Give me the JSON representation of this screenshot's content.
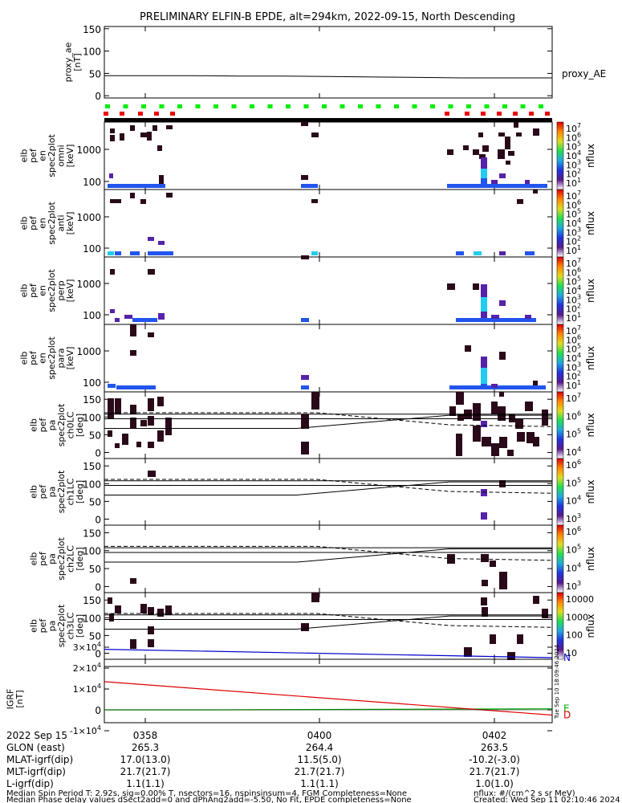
{
  "title": "PRELIMINARY ELFIN-B EPDE, alt=294km, 2022-09-15, North Descending",
  "colors": {
    "pa90": "#000000",
    "pa_lc": "#000000",
    "grf_n": "#0000cc",
    "grf_e": "#00aa00",
    "grf_d": "#dd0000",
    "bar_green": "#00ee00",
    "bar_red": "#ee0000",
    "cell_dark": "#2a0a1a",
    "cell_purple": "#5522aa",
    "cell_blue": "#2255ee",
    "cell_cyan": "#22ccee"
  },
  "chart_data": [
    {
      "panel": "proxy_ae",
      "type": "line",
      "ylabel": "proxy_ae\n[nT]",
      "ylim": [
        -5,
        155
      ],
      "yticks": [
        "150",
        "100",
        "50",
        "0"
      ],
      "legend": "proxy_AE",
      "x": [
        0,
        0.1,
        0.2,
        0.3,
        0.4,
        0.5,
        0.6,
        0.7,
        0.8,
        0.9,
        1.0
      ],
      "y": [
        45,
        45,
        45,
        44,
        44,
        43,
        42,
        41,
        40,
        40,
        40
      ]
    },
    {
      "panel": "status_bar",
      "type": "bar",
      "labels": []
    },
    {
      "panel": "omni",
      "type": "heatmap",
      "ylabel": "elb\npef\nen\nspec2plot\nomni\n[keV]",
      "yticks": [
        "1000",
        "100"
      ],
      "colorbar_ticks": [
        "10^7",
        "10^6",
        "10^5",
        "10^4",
        "10^3",
        "10^2",
        "10^1"
      ],
      "colorbar_label": "nflux"
    },
    {
      "panel": "anti",
      "type": "heatmap",
      "ylabel": "elb\npef\nen\nspec2plot\nanti\n[keV]",
      "yticks": [
        "1000",
        "100"
      ],
      "colorbar_ticks": [
        "10^7",
        "10^6",
        "10^5",
        "10^4",
        "10^3",
        "10^2",
        "10^1"
      ],
      "colorbar_label": "nflux"
    },
    {
      "panel": "perp",
      "type": "heatmap",
      "ylabel": "elb\npef\nen\nspec2plot\nperp\n[keV]",
      "yticks": [
        "1000",
        "100"
      ],
      "colorbar_ticks": [
        "10^7",
        "10^6",
        "10^5",
        "10^4",
        "10^3",
        "10^2",
        "10^1"
      ],
      "colorbar_label": "nflux"
    },
    {
      "panel": "para",
      "type": "heatmap",
      "ylabel": "elb\npef\nen\nspec2plot\npara\n[keV]",
      "yticks": [
        "1000",
        "100"
      ],
      "colorbar_ticks": [
        "10^7",
        "10^6",
        "10^5",
        "10^4",
        "10^3",
        "10^2",
        "10^1"
      ],
      "colorbar_label": "nflux"
    },
    {
      "panel": "ch0LC",
      "type": "heatmap",
      "ylabel": "elb\npef\npa\nspec2plot\nch0LC\n[deg]",
      "yticks": [
        "150",
        "100",
        "50",
        "0"
      ],
      "colorbar_ticks": [
        "10^7",
        "10^6",
        "10^5",
        "10^4"
      ],
      "colorbar_label": "nflux"
    },
    {
      "panel": "ch1LC",
      "type": "heatmap",
      "ylabel": "elb\npef\npa\nspec2plot\nch1LC\n[deg]",
      "yticks": [
        "150",
        "100",
        "50",
        "0"
      ],
      "colorbar_ticks": [
        "10^6",
        "10^5",
        "10^4",
        "10^3"
      ],
      "colorbar_label": "nflux"
    },
    {
      "panel": "ch2LC",
      "type": "heatmap",
      "ylabel": "elb\npef\npa\nspec2plot\nch2LC\n[deg]",
      "yticks": [
        "150",
        "100",
        "50",
        "0"
      ],
      "colorbar_ticks": [
        "10^6",
        "10^5",
        "10^4",
        "10^3"
      ],
      "colorbar_label": "nflux"
    },
    {
      "panel": "ch3LC",
      "type": "heatmap",
      "ylabel": "elb\npef\npa\nspec2plot\nch3LC\n[deg]",
      "yticks": [
        "150",
        "100",
        "50",
        "0"
      ],
      "colorbar_ticks": [
        "10000",
        "1000",
        "100",
        "10"
      ],
      "colorbar_label": "nflux"
    },
    {
      "panel": "IGRF",
      "type": "line",
      "ylabel": "IGRF\n[nT]",
      "yticks": [
        "3×10^4",
        "2×10^4",
        "1×10^4",
        "0",
        "-1×10^4"
      ],
      "series": [
        {
          "name": "N",
          "x": [
            0,
            1
          ],
          "y": [
            29000,
            25000
          ]
        },
        {
          "name": "E",
          "x": [
            0,
            0.25,
            1
          ],
          "y": [
            0,
            0,
            500
          ]
        },
        {
          "name": "D",
          "x": [
            0,
            1
          ],
          "y": [
            13500,
            -2500
          ]
        }
      ]
    }
  ],
  "footer": {
    "rows": [
      {
        "label": "2022 Sep 15",
        "v1": "0358",
        "v2": "0400",
        "v3": "0402"
      },
      {
        "label": "GLON (east)",
        "v1": "265.3",
        "v2": "264.4",
        "v3": "263.5"
      },
      {
        "label": "MLAT-igrf(dip)",
        "v1": "17.0(13.0)",
        "v2": "11.5(5.0)",
        "v3": "-10.2(-3.0)"
      },
      {
        "label": "MLT-igrf(dip)",
        "v1": "21.7(21.7)",
        "v2": "21.7(21.7)",
        "v3": "21.7(21.7)"
      },
      {
        "label": "L-igrf(dip)",
        "v1": "1.1(1.1)",
        "v2": "1.1(1.1)",
        "v3": "1.0(1.0)"
      }
    ],
    "note1": "Median Spin Period T: 2.92s, sig=0.00% T, nsectors=16, nspinsinsum=4, FGM Completeness=None",
    "note2": "Median Phase delay values dSect2add=0 and dPhAng2add=-5.50, No Fit, EPDE completeness=None",
    "units": "nflux: #/(cm^2 s sr MeV)",
    "created": "Created: Wed Sep 11 02:10:46 2024",
    "stamp": "Tue Sep 10 18:09:46 2024"
  }
}
